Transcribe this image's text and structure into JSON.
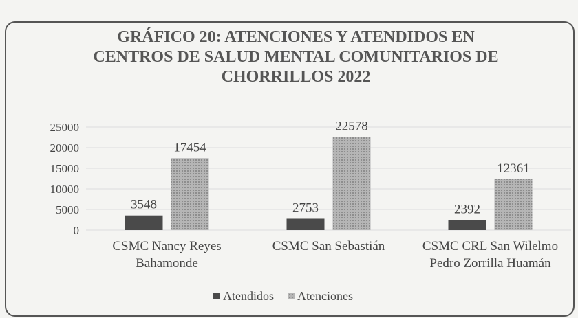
{
  "chart_data": {
    "type": "bar",
    "title": "GRÁFICO 20: ATENCIONES Y ATENDIDOS EN\nCENTROS DE SALUD MENTAL COMUNITARIOS DE\nCHORRILLOS 2022",
    "categories": [
      "CSMC Nancy Reyes\nBahamonde",
      "CSMC San Sebastián",
      "CSMC CRL San Wilelmo\nPedro Zorrilla Huamán"
    ],
    "series": [
      {
        "name": "Atendidos",
        "color": "#4a4a4a",
        "values": [
          3548,
          2753,
          2392
        ]
      },
      {
        "name": "Atenciones",
        "color": "#a9a9a9",
        "values": [
          17454,
          22578,
          12361
        ]
      }
    ],
    "ylim": [
      0,
      25000
    ],
    "yticks": [
      0,
      5000,
      10000,
      15000,
      20000,
      25000
    ],
    "grid": true,
    "legend": "bottom"
  }
}
